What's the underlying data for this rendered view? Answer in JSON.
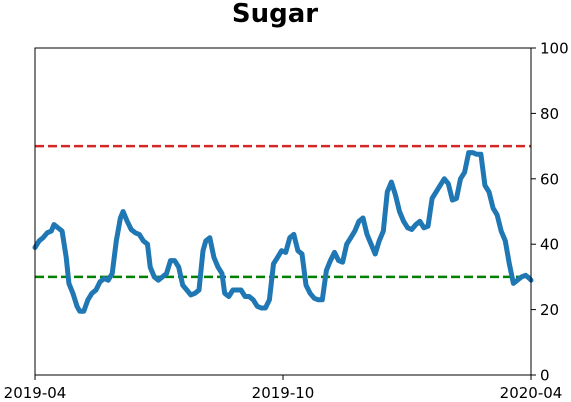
{
  "chart_data": {
    "type": "line",
    "title": "Sugar",
    "xlabel": "",
    "ylabel": "",
    "x_range": [
      "2019-04-01",
      "2020-04-01"
    ],
    "ylim": [
      0,
      100
    ],
    "y_axis_side": "right",
    "grid": false,
    "x_ticks": [
      {
        "date": "2019-04-01",
        "label": "2019-04"
      },
      {
        "date": "2019-10-01",
        "label": "2019-10"
      },
      {
        "date": "2020-04-01",
        "label": "2020-04"
      }
    ],
    "y_ticks": [
      0,
      20,
      40,
      60,
      80,
      100
    ],
    "reference_lines": [
      {
        "value": 70,
        "color": "#d62728",
        "style": "dashed"
      },
      {
        "value": 30,
        "color": "#008000",
        "style": "dashed"
      }
    ],
    "series": [
      {
        "color": "#1f77b4",
        "points": [
          [
            "2019-04-01",
            39
          ],
          [
            "2019-04-04",
            41
          ],
          [
            "2019-04-07",
            42
          ],
          [
            "2019-04-10",
            43.5
          ],
          [
            "2019-04-13",
            44
          ],
          [
            "2019-04-15",
            46
          ],
          [
            "2019-04-18",
            45
          ],
          [
            "2019-04-21",
            44
          ],
          [
            "2019-04-24",
            36
          ],
          [
            "2019-04-26",
            28
          ],
          [
            "2019-04-29",
            25
          ],
          [
            "2019-05-02",
            21
          ],
          [
            "2019-05-04",
            19.5
          ],
          [
            "2019-05-07",
            19.5
          ],
          [
            "2019-05-10",
            23
          ],
          [
            "2019-05-13",
            25
          ],
          [
            "2019-05-16",
            26
          ],
          [
            "2019-05-19",
            28.5
          ],
          [
            "2019-05-22",
            29.5
          ],
          [
            "2019-05-25",
            29
          ],
          [
            "2019-05-28",
            31
          ],
          [
            "2019-05-31",
            41
          ],
          [
            "2019-06-03",
            48
          ],
          [
            "2019-06-05",
            50
          ],
          [
            "2019-06-08",
            47
          ],
          [
            "2019-06-11",
            44.5
          ],
          [
            "2019-06-14",
            43.5
          ],
          [
            "2019-06-17",
            43
          ],
          [
            "2019-06-20",
            41
          ],
          [
            "2019-06-23",
            40
          ],
          [
            "2019-06-25",
            33
          ],
          [
            "2019-06-28",
            30
          ],
          [
            "2019-07-01",
            29
          ],
          [
            "2019-07-04",
            30
          ],
          [
            "2019-07-07",
            31
          ],
          [
            "2019-07-10",
            35
          ],
          [
            "2019-07-13",
            35
          ],
          [
            "2019-07-16",
            33
          ],
          [
            "2019-07-19",
            27.5
          ],
          [
            "2019-07-22",
            26
          ],
          [
            "2019-07-25",
            24.5
          ],
          [
            "2019-07-28",
            25
          ],
          [
            "2019-07-31",
            26
          ],
          [
            "2019-08-03",
            38
          ],
          [
            "2019-08-05",
            41
          ],
          [
            "2019-08-08",
            42
          ],
          [
            "2019-08-11",
            36
          ],
          [
            "2019-08-14",
            33
          ],
          [
            "2019-08-17",
            31
          ],
          [
            "2019-08-19",
            25
          ],
          [
            "2019-08-22",
            24
          ],
          [
            "2019-08-25",
            26
          ],
          [
            "2019-08-28",
            26
          ],
          [
            "2019-08-31",
            26
          ],
          [
            "2019-09-03",
            24
          ],
          [
            "2019-09-06",
            24
          ],
          [
            "2019-09-09",
            23
          ],
          [
            "2019-09-12",
            21
          ],
          [
            "2019-09-15",
            20.5
          ],
          [
            "2019-09-18",
            20.5
          ],
          [
            "2019-09-21",
            23
          ],
          [
            "2019-09-24",
            34
          ],
          [
            "2019-09-27",
            36
          ],
          [
            "2019-09-30",
            38
          ],
          [
            "2019-10-03",
            37.5
          ],
          [
            "2019-10-06",
            42
          ],
          [
            "2019-10-09",
            43
          ],
          [
            "2019-10-12",
            38
          ],
          [
            "2019-10-15",
            37
          ],
          [
            "2019-10-18",
            27.5
          ],
          [
            "2019-10-21",
            25
          ],
          [
            "2019-10-24",
            23.5
          ],
          [
            "2019-10-27",
            23
          ],
          [
            "2019-10-30",
            23
          ],
          [
            "2019-11-02",
            32
          ],
          [
            "2019-11-05",
            35
          ],
          [
            "2019-11-08",
            37.5
          ],
          [
            "2019-11-11",
            35
          ],
          [
            "2019-11-14",
            34.5
          ],
          [
            "2019-11-17",
            40
          ],
          [
            "2019-11-20",
            42
          ],
          [
            "2019-11-23",
            44
          ],
          [
            "2019-11-26",
            47
          ],
          [
            "2019-11-29",
            48
          ],
          [
            "2019-12-02",
            43
          ],
          [
            "2019-12-05",
            40
          ],
          [
            "2019-12-08",
            37
          ],
          [
            "2019-12-11",
            41
          ],
          [
            "2019-12-14",
            44
          ],
          [
            "2019-12-17",
            56
          ],
          [
            "2019-12-20",
            59
          ],
          [
            "2019-12-23",
            55
          ],
          [
            "2019-12-26",
            50
          ],
          [
            "2019-12-29",
            47
          ],
          [
            "2020-01-01",
            45
          ],
          [
            "2020-01-04",
            44.5
          ],
          [
            "2020-01-07",
            46
          ],
          [
            "2020-01-10",
            47
          ],
          [
            "2020-01-13",
            45
          ],
          [
            "2020-01-16",
            45.5
          ],
          [
            "2020-01-19",
            54
          ],
          [
            "2020-01-22",
            56
          ],
          [
            "2020-01-25",
            58
          ],
          [
            "2020-01-28",
            60
          ],
          [
            "2020-01-31",
            58.5
          ],
          [
            "2020-02-03",
            53.5
          ],
          [
            "2020-02-06",
            54
          ],
          [
            "2020-02-09",
            60
          ],
          [
            "2020-02-12",
            62
          ],
          [
            "2020-02-15",
            68
          ],
          [
            "2020-02-18",
            68
          ],
          [
            "2020-02-21",
            67.5
          ],
          [
            "2020-02-24",
            67.5
          ],
          [
            "2020-02-27",
            58
          ],
          [
            "2020-03-01",
            56
          ],
          [
            "2020-03-04",
            51
          ],
          [
            "2020-03-07",
            49
          ],
          [
            "2020-03-10",
            44
          ],
          [
            "2020-03-13",
            41
          ],
          [
            "2020-03-16",
            34
          ],
          [
            "2020-03-19",
            28
          ],
          [
            "2020-03-22",
            29
          ],
          [
            "2020-03-25",
            30
          ],
          [
            "2020-03-28",
            30.5
          ],
          [
            "2020-03-31",
            29.5
          ],
          [
            "2020-04-01",
            29
          ]
        ]
      }
    ]
  }
}
